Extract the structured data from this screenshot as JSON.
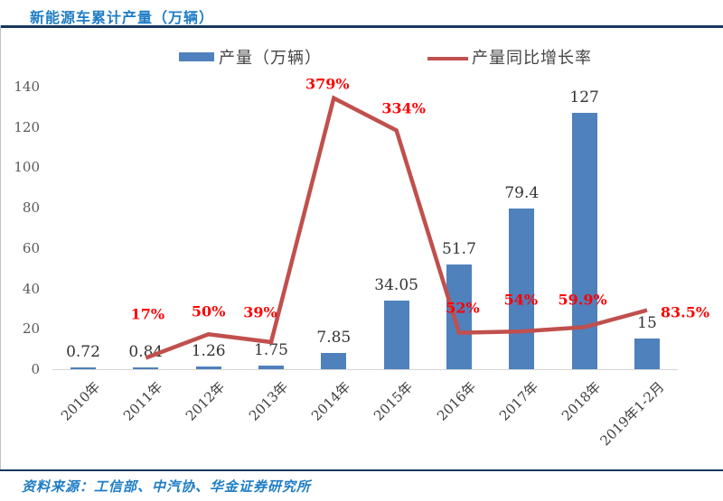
{
  "header": {
    "title": "新能源车累计产量（万辆）"
  },
  "legend": {
    "production_label": "产量（万辆）",
    "growth_label": "产量同比增长率"
  },
  "footer": {
    "source": "资料来源：工信部、中汽协、华金证券研究所"
  },
  "colors": {
    "title_blue": "#1f7dc5",
    "rule_navy": "#17375d",
    "bar_blue": "#4f81bd",
    "line_red": "#c0504d",
    "percent_red": "#fe0000"
  },
  "chart_data": {
    "type": "bar",
    "combo": "bar+line",
    "title": "新能源车累计产量（万辆）",
    "categories": [
      "2010年",
      "2011年",
      "2012年",
      "2013年",
      "2014年",
      "2015年",
      "2016年",
      "2017年",
      "2018年",
      "2019年1-2月"
    ],
    "series": [
      {
        "name": "产量（万辆）",
        "type": "bar",
        "color": "#4f81bd",
        "values": [
          0.72,
          0.84,
          1.26,
          1.75,
          7.85,
          34.05,
          51.7,
          79.4,
          127,
          15
        ],
        "labels": [
          "0.72",
          "0.84",
          "1.26",
          "1.75",
          "7.85",
          "34.05",
          "51.7",
          "79.4",
          "127",
          "15"
        ]
      },
      {
        "name": "产量同比增长率",
        "type": "line",
        "color": "#c0504d",
        "values": [
          null,
          17,
          50,
          39,
          379,
          334,
          52,
          54,
          59.9,
          83.5
        ],
        "labels": [
          "",
          "17%",
          "50%",
          "39%",
          "379%",
          "334%",
          "52%",
          "54%",
          "59.9%",
          "83.5%"
        ]
      }
    ],
    "y_axis": {
      "ticks": [
        0,
        20,
        40,
        60,
        80,
        100,
        120,
        140
      ],
      "min": 0,
      "max": 140
    },
    "legend_position": "top",
    "grid": false,
    "x_tick_rotation": 45,
    "source_note": "资料来源：工信部、中汽协、华金证券研究所"
  }
}
